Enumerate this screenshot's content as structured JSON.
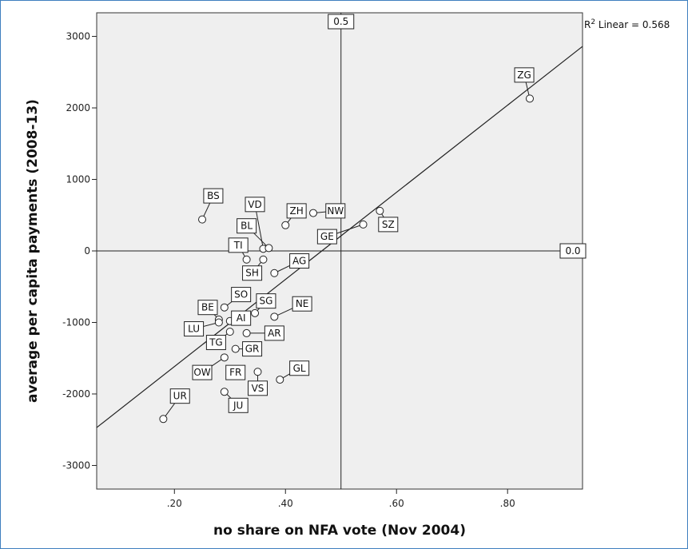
{
  "chart_data": {
    "type": "scatter",
    "xlabel": "no share on NFA vote (Nov 2004)",
    "ylabel": "average per capita payments (2008-13)",
    "xlim": [
      0.06,
      0.935
    ],
    "ylim": [
      -3330,
      3330
    ],
    "x_ticks": [
      {
        "value": 0.2,
        "label": ".20"
      },
      {
        "value": 0.4,
        "label": ".40"
      },
      {
        "value": 0.6,
        "label": ".60"
      },
      {
        "value": 0.8,
        "label": ".80"
      }
    ],
    "y_ticks": [
      {
        "value": 3000,
        "label": "3000"
      },
      {
        "value": 2000,
        "label": "2000"
      },
      {
        "value": 1000,
        "label": "1000"
      },
      {
        "value": 0,
        "label": "0"
      },
      {
        "value": -1000,
        "label": "-1000"
      },
      {
        "value": -2000,
        "label": "-2000"
      },
      {
        "value": -3000,
        "label": "-3000"
      }
    ],
    "grid": false,
    "reference_lines": {
      "vertical": {
        "value": 0.5,
        "label": "0.5"
      },
      "horizontal": {
        "value": 0,
        "label": "0.0"
      }
    },
    "fit_line": {
      "type": "linear",
      "label": "R² Linear = 0.568",
      "points": [
        [
          0.06,
          -2470
        ],
        [
          0.935,
          2860
        ]
      ]
    },
    "points": [
      {
        "label": "ZG",
        "x": 0.84,
        "y": 2130,
        "lx": 0.83,
        "ly": 2460
      },
      {
        "label": "BS",
        "x": 0.25,
        "y": 440,
        "lx": 0.27,
        "ly": 770
      },
      {
        "label": "VD",
        "x": 0.36,
        "y": 30,
        "lx": 0.345,
        "ly": 650
      },
      {
        "label": "ZH",
        "x": 0.4,
        "y": 360,
        "lx": 0.42,
        "ly": 560
      },
      {
        "label": "NW",
        "x": 0.45,
        "y": 530,
        "lx": 0.49,
        "ly": 560
      },
      {
        "label": "BL",
        "x": 0.37,
        "y": 40,
        "lx": 0.33,
        "ly": 350
      },
      {
        "label": "SZ",
        "x": 0.57,
        "y": 560,
        "lx": 0.585,
        "ly": 370
      },
      {
        "label": "GE",
        "x": 0.54,
        "y": 370,
        "lx": 0.475,
        "ly": 200
      },
      {
        "label": "TI",
        "x": 0.33,
        "y": -120,
        "lx": 0.315,
        "ly": 80
      },
      {
        "label": "AG",
        "x": 0.38,
        "y": -310,
        "lx": 0.425,
        "ly": -140
      },
      {
        "label": "SH",
        "x": 0.36,
        "y": -120,
        "lx": 0.34,
        "ly": -310
      },
      {
        "label": "SO",
        "x": 0.29,
        "y": -790,
        "lx": 0.32,
        "ly": -610
      },
      {
        "label": "SG",
        "x": 0.345,
        "y": -870,
        "lx": 0.365,
        "ly": -700
      },
      {
        "label": "NE",
        "x": 0.38,
        "y": -920,
        "lx": 0.43,
        "ly": -740
      },
      {
        "label": "BE",
        "x": 0.28,
        "y": -960,
        "lx": 0.26,
        "ly": -790
      },
      {
        "label": "AI",
        "x": 0.3,
        "y": -980,
        "lx": 0.32,
        "ly": -940
      },
      {
        "label": "LU",
        "x": 0.28,
        "y": -1000,
        "lx": 0.235,
        "ly": -1090
      },
      {
        "label": "AR",
        "x": 0.33,
        "y": -1150,
        "lx": 0.38,
        "ly": -1150
      },
      {
        "label": "TG",
        "x": 0.3,
        "y": -1130,
        "lx": 0.275,
        "ly": -1280
      },
      {
        "label": "GR",
        "x": 0.31,
        "y": -1370,
        "lx": 0.34,
        "ly": -1370
      },
      {
        "label": "OW",
        "x": 0.29,
        "y": -1490,
        "lx": 0.25,
        "ly": -1700
      },
      {
        "label": "FR",
        "x": 0.32,
        "y": -1690,
        "lx": 0.31,
        "ly": -1700
      },
      {
        "label": "VS",
        "x": 0.35,
        "y": -1690,
        "lx": 0.35,
        "ly": -1920
      },
      {
        "label": "GL",
        "x": 0.39,
        "y": -1800,
        "lx": 0.425,
        "ly": -1640
      },
      {
        "label": "UR",
        "x": 0.18,
        "y": -2350,
        "lx": 0.21,
        "ly": -2030
      },
      {
        "label": "JU",
        "x": 0.29,
        "y": -1970,
        "lx": 0.315,
        "ly": -2160
      }
    ]
  }
}
